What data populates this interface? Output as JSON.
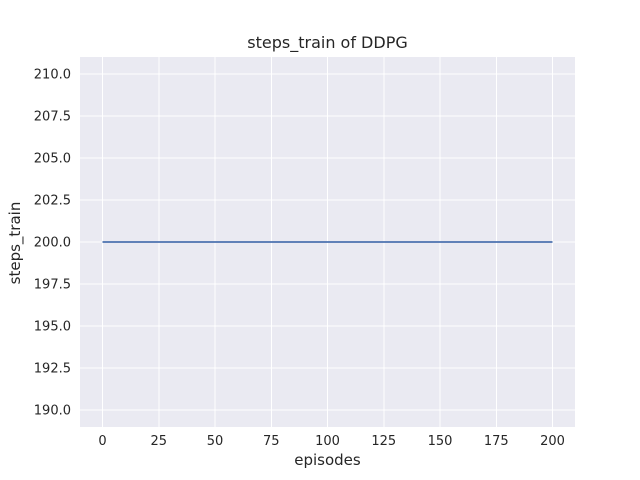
{
  "chart_data": {
    "type": "line",
    "title": "steps_train of DDPG",
    "xlabel": "episodes",
    "ylabel": "steps_train",
    "xlim": [
      -10,
      210
    ],
    "ylim": [
      189,
      211
    ],
    "xticks": [
      0,
      25,
      50,
      75,
      100,
      125,
      150,
      175,
      200
    ],
    "xtick_labels": [
      "0",
      "25",
      "50",
      "75",
      "100",
      "125",
      "150",
      "175",
      "200"
    ],
    "yticks": [
      190,
      192.5,
      195,
      197.5,
      200,
      202.5,
      205,
      207.5,
      210
    ],
    "ytick_labels": [
      "190.0",
      "192.5",
      "195.0",
      "197.5",
      "200.0",
      "202.5",
      "205.0",
      "207.5",
      "210.0"
    ],
    "grid": true,
    "legend_position": "none",
    "series": [
      {
        "label": "steps_train",
        "color": "#4c72b0",
        "x": [
          0,
          200
        ],
        "y": [
          200,
          200
        ]
      }
    ],
    "line_width": 1.8,
    "colors": {
      "figure_background": "#ffffff",
      "plot_background": "#eaeaf2",
      "grid": "#ffffff",
      "text": "#262626",
      "line": "#4c72b0"
    },
    "tick_font_size": 13
  }
}
